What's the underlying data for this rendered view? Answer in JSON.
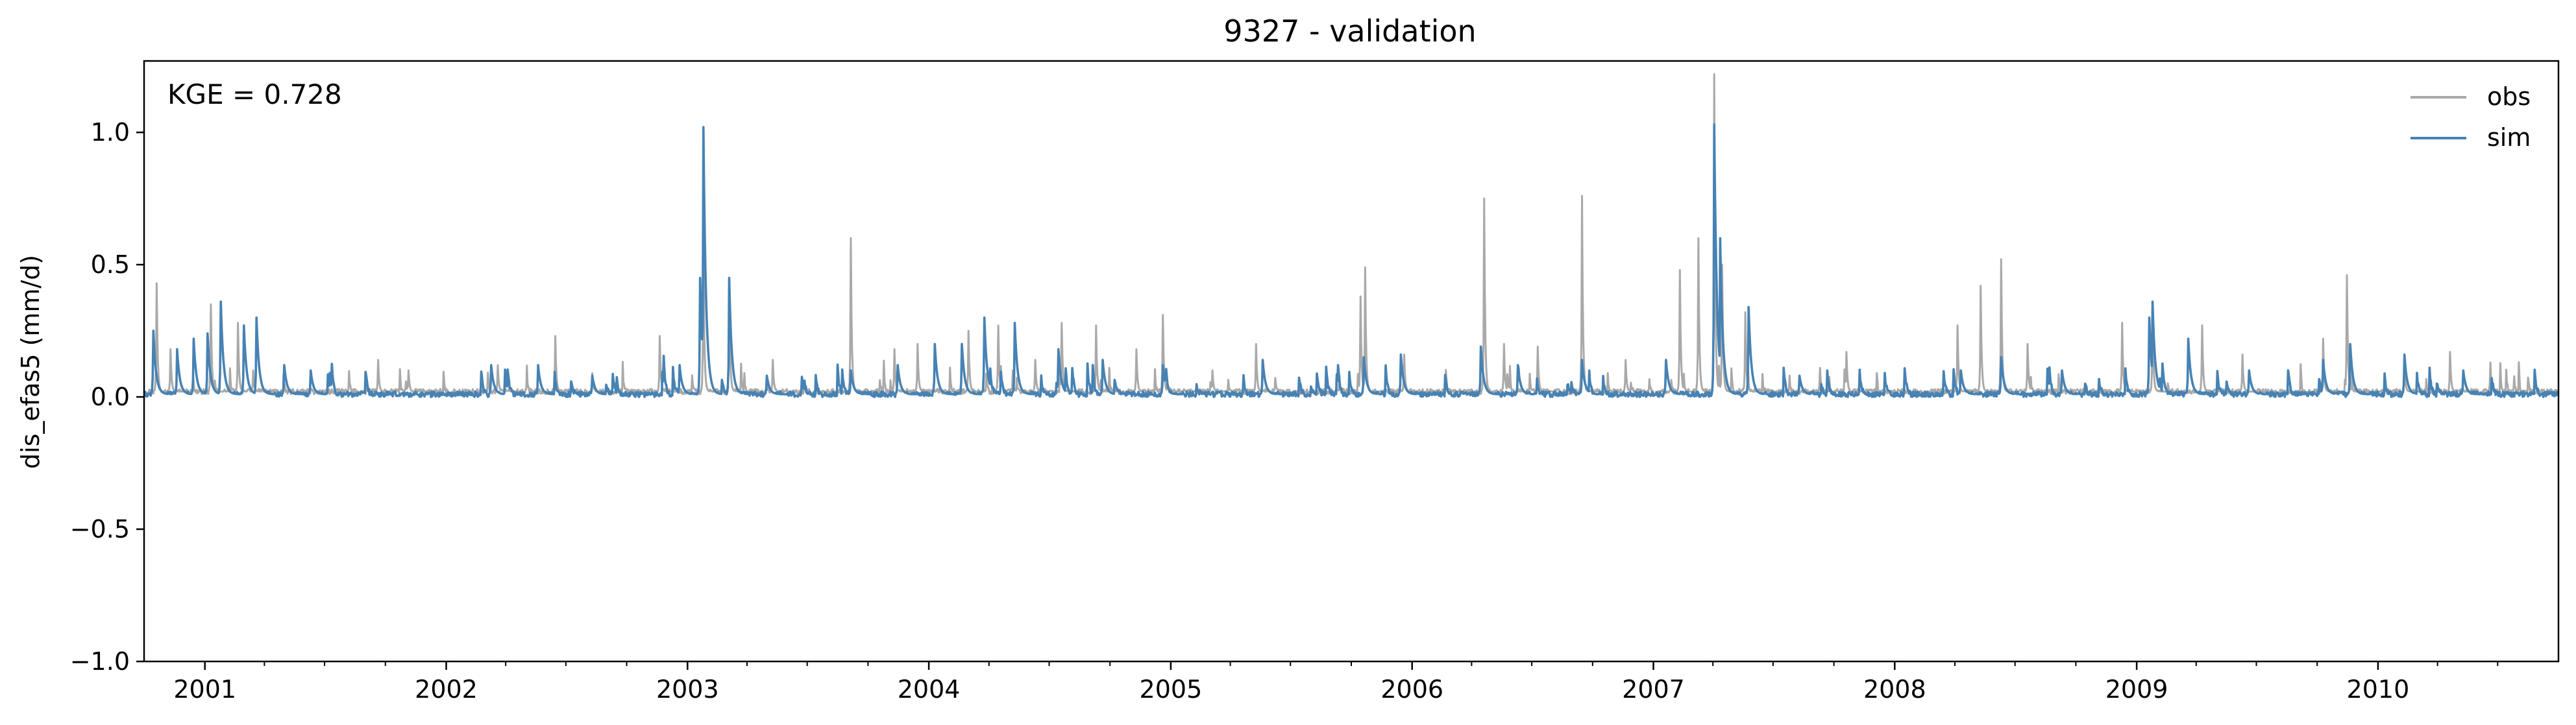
{
  "chart_data": {
    "type": "line",
    "title": "9327 - validation",
    "xlabel": "",
    "ylabel": "dis_efas5 (mm/d)",
    "annotation": "KGE = 0.728",
    "xlim": [
      "2000-10-01",
      "2010-10-01"
    ],
    "ylim": [
      -1.0,
      1.27
    ],
    "yticks": [
      -1.0,
      -0.5,
      0.0,
      0.5,
      1.0
    ],
    "ytick_labels": [
      "−1.0",
      "−0.5",
      "0.0",
      "0.5",
      "1.0"
    ],
    "xticks": [
      "2001-01-01",
      "2002-01-01",
      "2003-01-01",
      "2004-01-01",
      "2005-01-01",
      "2006-01-01",
      "2007-01-01",
      "2008-01-01",
      "2009-01-01",
      "2010-01-01"
    ],
    "xtick_labels": [
      "2001",
      "2002",
      "2003",
      "2004",
      "2005",
      "2006",
      "2007",
      "2008",
      "2009",
      "2010"
    ],
    "grid": false,
    "legend_position": "top-right",
    "series": [
      {
        "name": "obs",
        "color": "#a9a9a9",
        "baseline": 0.02,
        "peaks": [
          [
            "2000-10-20",
            0.43
          ],
          [
            "2000-11-10",
            0.18
          ],
          [
            "2001-01-10",
            0.35
          ],
          [
            "2001-02-20",
            0.28
          ],
          [
            "2001-03-15",
            0.1
          ],
          [
            "2001-09-20",
            0.14
          ],
          [
            "2001-11-05",
            0.1
          ],
          [
            "2002-03-20",
            0.12
          ],
          [
            "2002-06-15",
            0.23
          ],
          [
            "2002-08-10",
            0.09
          ],
          [
            "2002-11-20",
            0.23
          ],
          [
            "2003-01-25",
            0.55
          ],
          [
            "2003-03-05",
            0.42
          ],
          [
            "2003-05-10",
            0.14
          ],
          [
            "2003-09-05",
            0.6
          ],
          [
            "2003-11-10",
            0.18
          ],
          [
            "2003-12-15",
            0.2
          ],
          [
            "2004-03-01",
            0.25
          ],
          [
            "2004-04-15",
            0.27
          ],
          [
            "2004-06-10",
            0.14
          ],
          [
            "2004-07-20",
            0.28
          ],
          [
            "2004-09-10",
            0.27
          ],
          [
            "2004-11-10",
            0.18
          ],
          [
            "2004-12-20",
            0.31
          ],
          [
            "2005-03-05",
            0.1
          ],
          [
            "2005-05-10",
            0.2
          ],
          [
            "2005-10-15",
            0.38
          ],
          [
            "2005-10-22",
            0.49
          ],
          [
            "2005-12-20",
            0.16
          ],
          [
            "2006-04-20",
            0.75
          ],
          [
            "2006-05-20",
            0.2
          ],
          [
            "2006-07-10",
            0.19
          ],
          [
            "2006-09-15",
            0.76
          ],
          [
            "2006-11-20",
            0.14
          ],
          [
            "2007-02-10",
            0.48
          ],
          [
            "2007-03-10",
            0.6
          ],
          [
            "2007-04-03",
            1.22
          ],
          [
            "2007-04-15",
            0.5
          ],
          [
            "2007-05-20",
            0.32
          ],
          [
            "2007-09-10",
            0.11
          ],
          [
            "2007-10-20",
            0.17
          ],
          [
            "2008-04-05",
            0.27
          ],
          [
            "2008-05-10",
            0.42
          ],
          [
            "2008-06-10",
            0.52
          ],
          [
            "2008-07-20",
            0.2
          ],
          [
            "2008-12-10",
            0.28
          ],
          [
            "2009-01-25",
            0.3
          ],
          [
            "2009-04-10",
            0.27
          ],
          [
            "2009-06-10",
            0.16
          ],
          [
            "2009-10-10",
            0.22
          ],
          [
            "2009-11-15",
            0.46
          ],
          [
            "2010-02-10",
            0.12
          ],
          [
            "2010-04-20",
            0.17
          ],
          [
            "2010-06-20",
            0.13
          ]
        ]
      },
      {
        "name": "sim",
        "color": "#4682b4",
        "baseline": 0.01,
        "peaks": [
          [
            "2000-10-15",
            0.25
          ],
          [
            "2000-11-20",
            0.18
          ],
          [
            "2000-12-15",
            0.22
          ],
          [
            "2001-01-05",
            0.24
          ],
          [
            "2001-01-25",
            0.36
          ],
          [
            "2001-03-01",
            0.27
          ],
          [
            "2001-03-20",
            0.3
          ],
          [
            "2001-05-01",
            0.12
          ],
          [
            "2001-06-10",
            0.1
          ],
          [
            "2002-03-10",
            0.12
          ],
          [
            "2002-05-20",
            0.12
          ],
          [
            "2002-08-10",
            0.08
          ],
          [
            "2002-12-20",
            0.12
          ],
          [
            "2003-01-20",
            0.45
          ],
          [
            "2003-01-25",
            1.02
          ],
          [
            "2003-03-05",
            0.45
          ],
          [
            "2003-05-01",
            0.08
          ],
          [
            "2003-09-05",
            0.1
          ],
          [
            "2003-11-15",
            0.12
          ],
          [
            "2004-01-10",
            0.2
          ],
          [
            "2004-02-20",
            0.2
          ],
          [
            "2004-03-25",
            0.3
          ],
          [
            "2004-05-10",
            0.28
          ],
          [
            "2004-07-15",
            0.18
          ],
          [
            "2004-09-20",
            0.14
          ],
          [
            "2004-12-20",
            0.12
          ],
          [
            "2005-05-20",
            0.14
          ],
          [
            "2005-10-20",
            0.15
          ],
          [
            "2005-12-15",
            0.16
          ],
          [
            "2006-04-15",
            0.19
          ],
          [
            "2006-06-10",
            0.12
          ],
          [
            "2006-09-15",
            0.14
          ],
          [
            "2007-01-20",
            0.14
          ],
          [
            "2007-04-03",
            1.03
          ],
          [
            "2007-04-12",
            0.6
          ],
          [
            "2007-05-25",
            0.34
          ],
          [
            "2007-08-10",
            0.08
          ],
          [
            "2008-04-10",
            0.1
          ],
          [
            "2008-06-10",
            0.15
          ],
          [
            "2008-09-10",
            0.1
          ],
          [
            "2009-01-20",
            0.3
          ],
          [
            "2009-01-25",
            0.36
          ],
          [
            "2009-03-20",
            0.22
          ],
          [
            "2009-06-20",
            0.1
          ],
          [
            "2009-10-10",
            0.14
          ],
          [
            "2009-11-20",
            0.2
          ],
          [
            "2010-02-10",
            0.16
          ],
          [
            "2010-05-10",
            0.1
          ]
        ]
      }
    ]
  }
}
